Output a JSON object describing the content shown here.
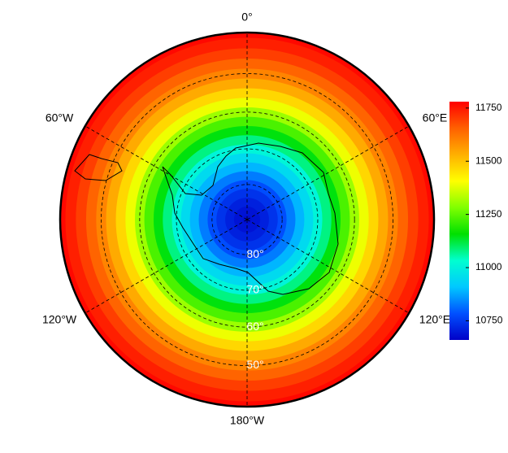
{
  "map_data": {
    "type": "polar-stereographic",
    "lat_range": [
      -90,
      -40
    ],
    "meridians": [
      {
        "lon": 0,
        "label": "0°"
      },
      {
        "lon": 60,
        "label": "60°E"
      },
      {
        "lon": 120,
        "label": "120°E"
      },
      {
        "lon": 180,
        "label": "180°W"
      },
      {
        "lon": 240,
        "label": "120°W"
      },
      {
        "lon": 300,
        "label": "60°W"
      }
    ],
    "parallels": [
      {
        "lat": -80,
        "label": "80°"
      },
      {
        "lat": -70,
        "label": "70°"
      },
      {
        "lat": -60,
        "label": "60°"
      },
      {
        "lat": -50,
        "label": "50°"
      }
    ],
    "field": {
      "lat": [
        -90,
        -87.5,
        -85,
        -82.5,
        -80,
        -77.5,
        -75,
        -72.5,
        -70,
        -67.5,
        -65,
        -62.5,
        -60,
        -57.5,
        -55,
        -52.5,
        -50,
        -47.5,
        -45,
        -42.5,
        -40
      ],
      "values": [
        10680,
        10690,
        10710,
        10740,
        10780,
        10830,
        10890,
        10950,
        11010,
        11080,
        11150,
        11230,
        11310,
        11390,
        11470,
        11540,
        11600,
        11650,
        11700,
        11740,
        11770
      ]
    },
    "colorbar": {
      "lim": [
        10660,
        11780
      ],
      "ticks": [
        10750,
        11000,
        11250,
        11500,
        11750
      ],
      "colors": [
        "#0000c8",
        "#0050ff",
        "#00c8ff",
        "#00ffd0",
        "#00e000",
        "#80ff00",
        "#ffff00",
        "#ffb000",
        "#ff6000",
        "#ff0000"
      ]
    }
  }
}
